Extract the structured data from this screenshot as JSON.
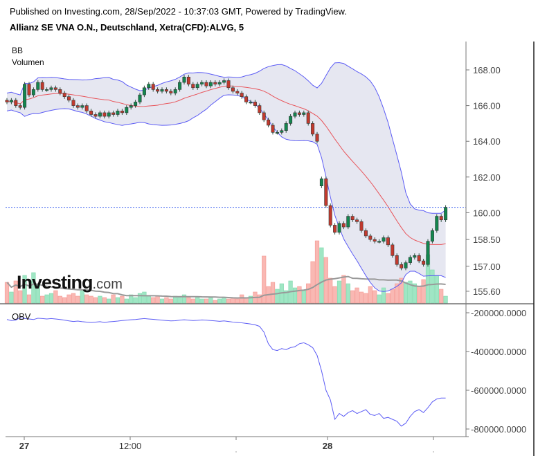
{
  "header": {
    "published": "Published on Investing.com, 28/Sep/2022 - 10:37:03 GMT, Powered by TradingView.",
    "title": "Allianz SE VNA O.N., Deutschland, Xetra(CFD):ALVG, 5"
  },
  "legend": {
    "bb": "BB",
    "volume": "Volumen",
    "obv": "OBV"
  },
  "logo": {
    "main": "Investing",
    "suffix": ".com"
  },
  "colors": {
    "up": "#13874f",
    "down": "#c23a2e",
    "bb_band": "#5b5bf5",
    "bb_basis": "#e8545a",
    "bb_fill": "#e3e4f0",
    "vol_up": "#9fe6c4",
    "vol_down": "#f9b8b3",
    "vol_ma": "#999999",
    "obv": "#5b5bf5",
    "last_price": "#4a6cf0"
  },
  "chart_data": {
    "type": "candlestick",
    "title": "Allianz SE VNA O.N., Deutschland, Xetra(CFD):ALVG, 5",
    "price_axis": {
      "ticks": [
        "168.00",
        "166.00",
        "164.00",
        "162.00",
        "160.00",
        "158.50",
        "157.00",
        "155.60"
      ],
      "range": [
        155.1,
        170.0
      ]
    },
    "obv_axis": {
      "ticks": [
        "-200000.0000",
        "-400000.0000",
        "-600000.0000",
        "-800000.0000"
      ],
      "range": [
        -850000,
        -160000
      ]
    },
    "x_ticks": [
      {
        "label": "27",
        "bold": true,
        "index": 4
      },
      {
        "label": "12:00",
        "bold": false,
        "index": 28
      },
      {
        "label": "",
        "bold": false,
        "index": 52
      },
      {
        "label": "28",
        "bold": true,
        "index": 72
      },
      {
        "label": "",
        "bold": false,
        "index": 96
      }
    ],
    "last_price": 160.3,
    "gap_opens": {
      "71": 161.5
    },
    "close": [
      166.2,
      166.3,
      166.0,
      165.9,
      167.2,
      166.6,
      166.9,
      167.3,
      166.9,
      166.9,
      167.0,
      166.9,
      166.7,
      166.5,
      166.3,
      166.0,
      165.9,
      166.0,
      165.7,
      165.5,
      165.4,
      165.6,
      165.4,
      165.6,
      165.5,
      165.7,
      165.6,
      165.9,
      166.0,
      166.2,
      166.6,
      167.0,
      167.2,
      166.9,
      166.8,
      166.9,
      166.8,
      166.7,
      166.9,
      167.3,
      167.6,
      167.2,
      167.0,
      167.2,
      167.3,
      167.1,
      167.3,
      167.2,
      167.3,
      167.4,
      167.0,
      166.8,
      166.7,
      166.5,
      166.2,
      166.2,
      166.0,
      165.6,
      165.2,
      164.9,
      164.5,
      164.5,
      164.6,
      165.0,
      165.4,
      165.6,
      165.5,
      165.6,
      165.0,
      164.4,
      164.0,
      161.9,
      160.4,
      159.3,
      158.9,
      159.4,
      159.2,
      159.8,
      159.6,
      159.5,
      159.0,
      158.7,
      158.5,
      158.4,
      158.4,
      158.6,
      158.2,
      157.6,
      157.1,
      156.9,
      157.2,
      157.5,
      157.6,
      157.3,
      157.1,
      158.4,
      159.0,
      159.8,
      159.6,
      160.3
    ],
    "volume": [
      15000,
      8000,
      16000,
      9000,
      20000,
      6000,
      22000,
      14000,
      5000,
      6000,
      7000,
      9000,
      5000,
      4000,
      6000,
      7000,
      5000,
      9000,
      6000,
      5000,
      4000,
      5000,
      4000,
      3000,
      6000,
      4000,
      5000,
      3000,
      6000,
      4000,
      7000,
      8000,
      5000,
      4000,
      5000,
      3000,
      4000,
      3000,
      5000,
      4000,
      6000,
      4000,
      3000,
      4000,
      3000,
      3000,
      4000,
      2000,
      3000,
      4000,
      3000,
      4000,
      3000,
      6000,
      4000,
      5000,
      8000,
      6000,
      34000,
      12000,
      15000,
      10000,
      14000,
      9000,
      16000,
      11000,
      12000,
      9000,
      14000,
      30000,
      45000,
      40000,
      33000,
      18000,
      12000,
      16000,
      20000,
      14000,
      9000,
      11000,
      8000,
      7000,
      12000,
      9000,
      6000,
      11000,
      7000,
      10000,
      14000,
      18000,
      15000,
      16000,
      14000,
      12000,
      17000,
      35000,
      24000,
      20000,
      10000,
      5000
    ],
    "obv": [
      -235000,
      -240000,
      -238000,
      -225000,
      -230000,
      -232000,
      -235000,
      -228000,
      -230000,
      -232000,
      -230000,
      -232000,
      -235000,
      -238000,
      -242000,
      -245000,
      -243000,
      -246000,
      -248000,
      -250000,
      -248000,
      -246000,
      -250000,
      -247000,
      -245000,
      -243000,
      -240000,
      -238000,
      -236000,
      -235000,
      -232000,
      -230000,
      -232000,
      -234000,
      -236000,
      -238000,
      -240000,
      -242000,
      -241000,
      -238000,
      -236000,
      -238000,
      -240000,
      -239000,
      -237000,
      -238000,
      -240000,
      -242000,
      -244000,
      -242000,
      -245000,
      -248000,
      -250000,
      -252000,
      -255000,
      -258000,
      -262000,
      -270000,
      -300000,
      -360000,
      -390000,
      -395000,
      -385000,
      -390000,
      -380000,
      -375000,
      -360000,
      -355000,
      -365000,
      -380000,
      -420000,
      -500000,
      -600000,
      -650000,
      -750000,
      -720000,
      -735000,
      -715000,
      -705000,
      -720000,
      -710000,
      -700000,
      -725000,
      -730000,
      -720000,
      -745000,
      -740000,
      -750000,
      -760000,
      -785000,
      -770000,
      -735000,
      -710000,
      -700000,
      -715000,
      -690000,
      -660000,
      -645000,
      -640000,
      -640000
    ],
    "bb_period": 20,
    "volume_ma_period": 20
  }
}
